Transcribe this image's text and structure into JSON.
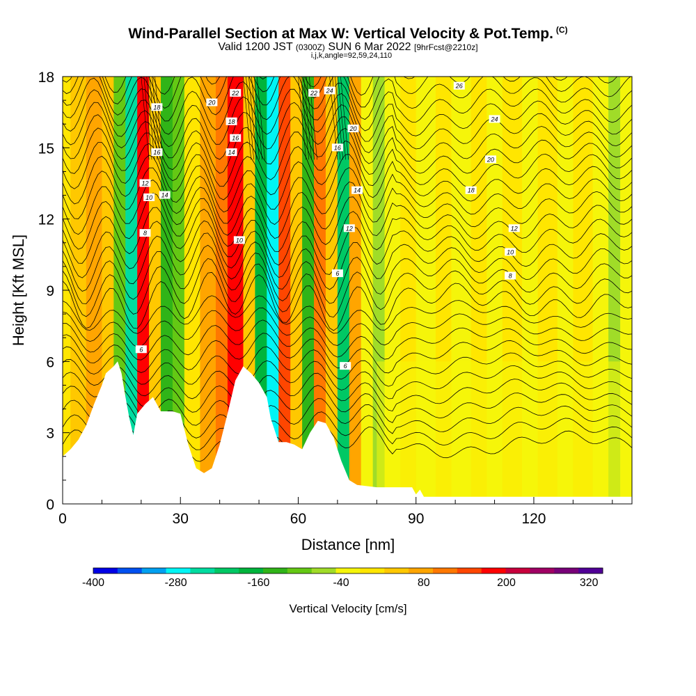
{
  "header": {
    "title": "Wind-Parallel Section at Max W: Vertical Velocity & Pot.Temp.",
    "title_tag": "(C)",
    "subtitle_a": "Valid 1200 JST",
    "subtitle_b": "(0300Z)",
    "subtitle_c": "SUN 6 Mar 2022",
    "subtitle_d": "[9hrFcst@2210z]",
    "params": "i,j,k,angle=92,59,24,110"
  },
  "chart_data": {
    "type": "heatmap",
    "xlabel": "Distance [nm]",
    "ylabel": "Height [Kft MSL]",
    "xlim": [
      0,
      145
    ],
    "ylim": [
      0,
      18
    ],
    "x_ticks": [
      0,
      30,
      60,
      90,
      120
    ],
    "y_ticks": [
      0,
      3,
      6,
      9,
      12,
      15,
      18
    ],
    "colorbar": {
      "title": "Vertical Velocity [cm/s]",
      "tick_labels": [
        -400,
        -280,
        -160,
        -40,
        80,
        200,
        320
      ],
      "colors": [
        "#0000e6",
        "#0050f0",
        "#00a0f0",
        "#00f5f5",
        "#00dca0",
        "#00c864",
        "#00b43c",
        "#30b418",
        "#64c814",
        "#a0dc28",
        "#f5f50a",
        "#ffe600",
        "#ffc800",
        "#ffa500",
        "#ff7800",
        "#ff4600",
        "#ff0000",
        "#c8003c",
        "#a00064",
        "#780078",
        "#500096"
      ]
    },
    "velocity_bands": [
      {
        "x": 2,
        "w": 4,
        "level": 12
      },
      {
        "x": 6,
        "w": 4,
        "level": 13
      },
      {
        "x": 10,
        "w": 3,
        "level": 12
      },
      {
        "x": 13,
        "w": 3,
        "level": 8
      },
      {
        "x": 16,
        "w": 3,
        "level": 4
      },
      {
        "x": 19,
        "w": 3,
        "level": 16
      },
      {
        "x": 22,
        "w": 3,
        "level": 12
      },
      {
        "x": 25,
        "w": 3,
        "level": 7
      },
      {
        "x": 28,
        "w": 3,
        "level": 8
      },
      {
        "x": 31,
        "w": 4,
        "level": 11
      },
      {
        "x": 35,
        "w": 4,
        "level": 13
      },
      {
        "x": 39,
        "w": 3,
        "level": 14
      },
      {
        "x": 42,
        "w": 4,
        "level": 16
      },
      {
        "x": 46,
        "w": 3,
        "level": 12
      },
      {
        "x": 49,
        "w": 3,
        "level": 6
      },
      {
        "x": 52,
        "w": 3,
        "level": 3
      },
      {
        "x": 55,
        "w": 3,
        "level": 15
      },
      {
        "x": 58,
        "w": 3,
        "level": 12
      },
      {
        "x": 61,
        "w": 3,
        "level": 7
      },
      {
        "x": 64,
        "w": 3,
        "level": 14
      },
      {
        "x": 67,
        "w": 3,
        "level": 12
      },
      {
        "x": 70,
        "w": 3,
        "level": 5
      },
      {
        "x": 73,
        "w": 3,
        "level": 13
      },
      {
        "x": 76,
        "w": 3,
        "level": 10
      },
      {
        "x": 79,
        "w": 3,
        "level": 9
      },
      {
        "x": 82,
        "w": 4,
        "level": 10
      },
      {
        "x": 86,
        "w": 4,
        "level": 11
      },
      {
        "x": 90,
        "w": 5,
        "level": 10
      },
      {
        "x": 95,
        "w": 4,
        "level": 11
      },
      {
        "x": 99,
        "w": 5,
        "level": 10
      },
      {
        "x": 104,
        "w": 4,
        "level": 11
      },
      {
        "x": 108,
        "w": 4,
        "level": 10
      },
      {
        "x": 112,
        "w": 5,
        "level": 11
      },
      {
        "x": 117,
        "w": 4,
        "level": 10
      },
      {
        "x": 121,
        "w": 5,
        "level": 11
      },
      {
        "x": 126,
        "w": 4,
        "level": 10
      },
      {
        "x": 130,
        "w": 5,
        "level": 11
      },
      {
        "x": 135,
        "w": 4,
        "level": 10
      },
      {
        "x": 139,
        "w": 3,
        "level": 9
      },
      {
        "x": 142,
        "w": 3,
        "level": 10
      }
    ],
    "terrain": [
      [
        0,
        2
      ],
      [
        2,
        2.3
      ],
      [
        4,
        2.7
      ],
      [
        6,
        3.3
      ],
      [
        8,
        4.2
      ],
      [
        10,
        5
      ],
      [
        11,
        5.5
      ],
      [
        13,
        5.8
      ],
      [
        14,
        6
      ],
      [
        15,
        5.5
      ],
      [
        16,
        4.5
      ],
      [
        17,
        3.6
      ],
      [
        18,
        2.9
      ],
      [
        19,
        3.8
      ],
      [
        21,
        4.2
      ],
      [
        23,
        4.5
      ],
      [
        25,
        3.9
      ],
      [
        28,
        3.9
      ],
      [
        30,
        3.8
      ],
      [
        32,
        2.5
      ],
      [
        34,
        1.5
      ],
      [
        36,
        1.3
      ],
      [
        38,
        1.5
      ],
      [
        40,
        2.5
      ],
      [
        42,
        3.8
      ],
      [
        44,
        5.2
      ],
      [
        46,
        5.8
      ],
      [
        48,
        5.5
      ],
      [
        50,
        5.1
      ],
      [
        52,
        4.5
      ],
      [
        53,
        3.6
      ],
      [
        55,
        2.6
      ],
      [
        57,
        2.6
      ],
      [
        59,
        2.5
      ],
      [
        61,
        2.3
      ],
      [
        63,
        3
      ],
      [
        65,
        3.5
      ],
      [
        67,
        3.4
      ],
      [
        69,
        2.8
      ],
      [
        71,
        1.8
      ],
      [
        73,
        1
      ],
      [
        75,
        0.8
      ],
      [
        80,
        0.7
      ],
      [
        89,
        0.7
      ],
      [
        90,
        0.4
      ],
      [
        91,
        0.6
      ],
      [
        92,
        0.3
      ],
      [
        100,
        0.3
      ],
      [
        145,
        0.3
      ]
    ],
    "theta_contour_labels": [
      "6",
      "6",
      "6",
      "8",
      "8",
      "10",
      "10",
      "10",
      "12",
      "12",
      "12",
      "14",
      "14",
      "14",
      "16",
      "16",
      "16",
      "18",
      "18",
      "18",
      "20",
      "20",
      "20",
      "22",
      "22",
      "24",
      "24",
      "26"
    ]
  }
}
